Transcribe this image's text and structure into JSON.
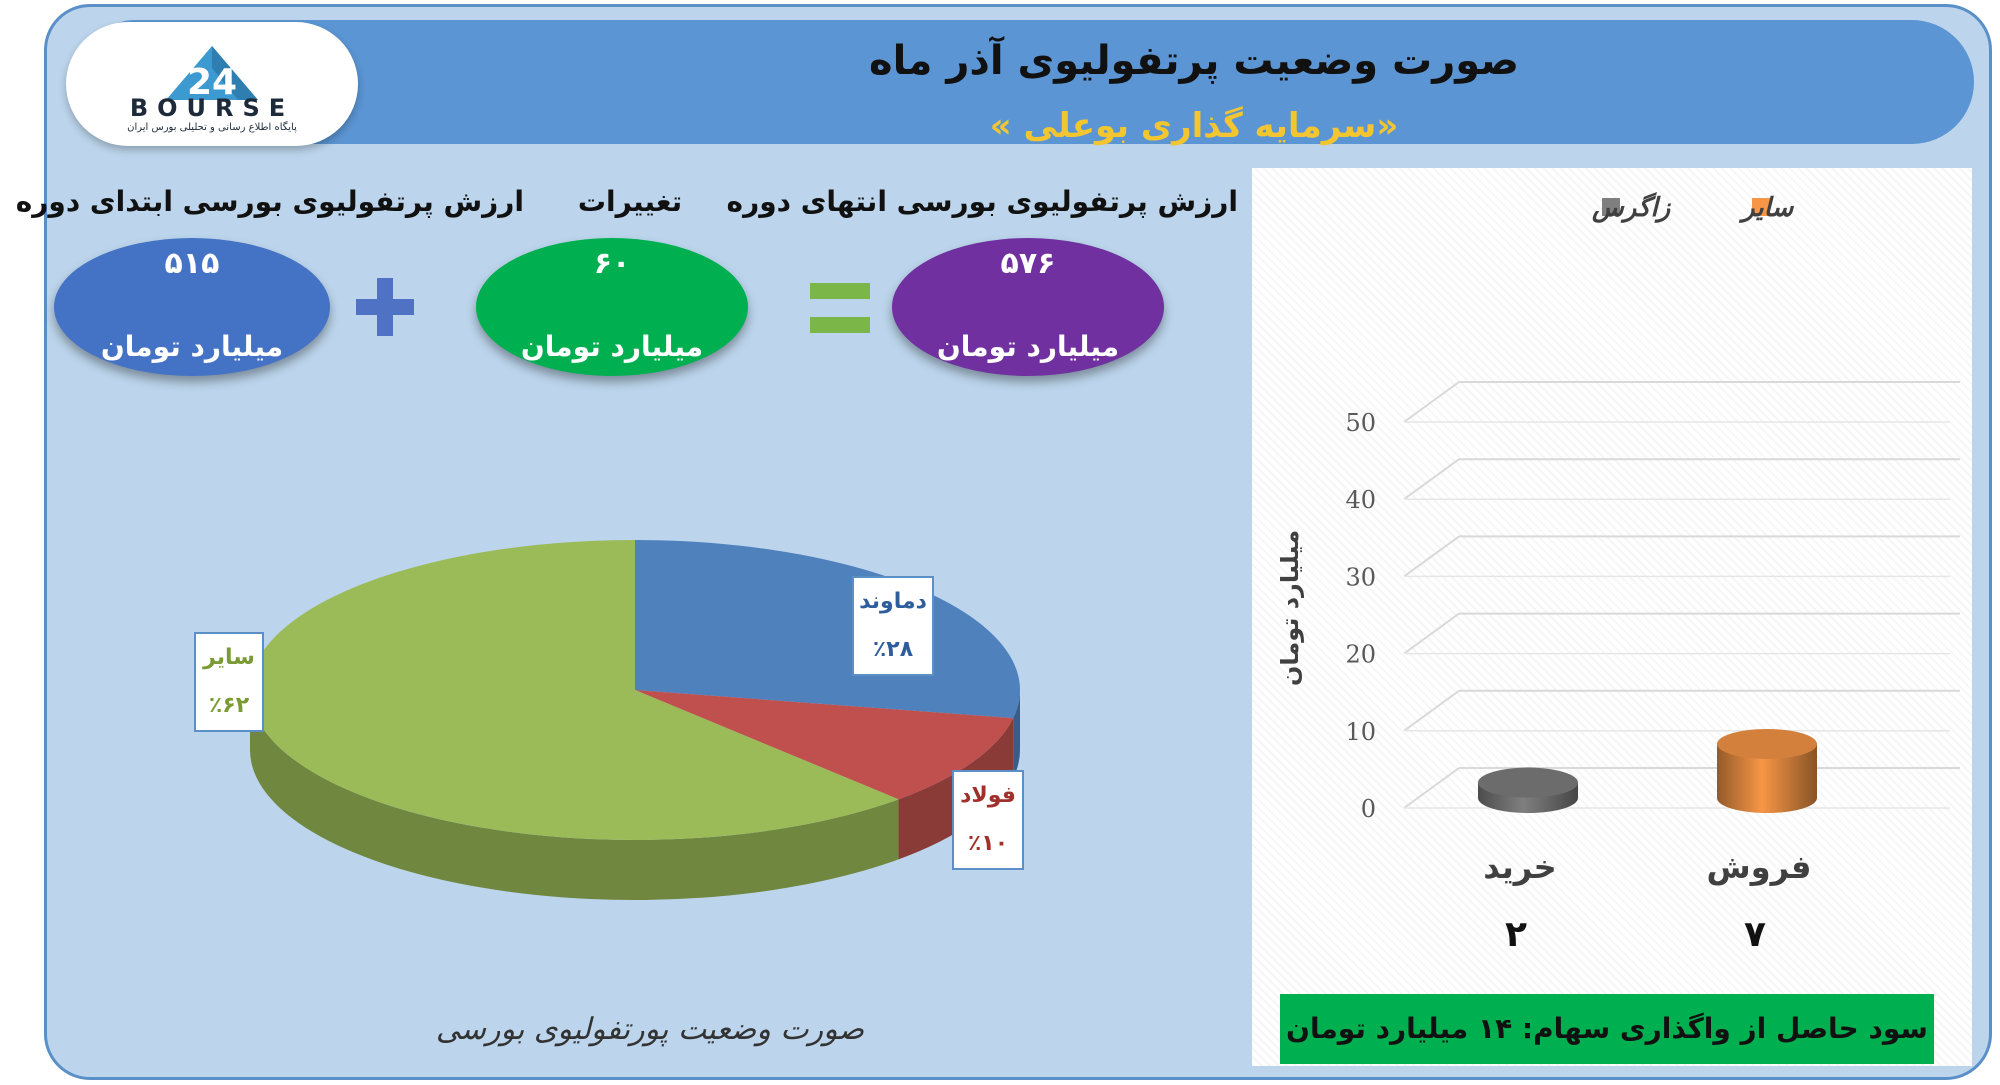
{
  "header": {
    "title": "صورت وضعیت پرتفولیوی آذر ماه",
    "subtitle": "«سرمایه گذاری بوعلی »"
  },
  "logo": {
    "text": "BOURSE",
    "tagline": "پایگاه اطلاع رسانی و تحلیلی بورس ایران"
  },
  "summary": {
    "end_label": "ارزش پرتفولیوی بورسی انتهای دوره",
    "end_value": "۵۷۶",
    "changes_label": "تغییرات",
    "changes_value": "۶۰",
    "start_label": "ارزش پرتفولیوی بورسی ابتدای دوره",
    "start_value": "۵۱۵",
    "unit": "میلیارد تومان",
    "colors": {
      "end": "#7030a0",
      "changes": "#00b050",
      "start": "#4472c4"
    }
  },
  "pie_caption": "صورت وضعیت پورتفولیوی بورسی",
  "profit": "سود حاصل از واگذاری سهام: ۱۴ میلیارد تومان",
  "chart_data": [
    {
      "type": "pie",
      "title": "",
      "slices": [
        {
          "label": "دماوند",
          "value": 28,
          "value_label": "٪۲۸",
          "color": "#4f81bd"
        },
        {
          "label": "فولاد",
          "value": 10,
          "value_label": "٪۱۰",
          "color": "#c0504d"
        },
        {
          "label": "سایر",
          "value": 62,
          "value_label": "٪۶۲",
          "color": "#9bbb59"
        }
      ]
    },
    {
      "type": "bar",
      "title": "",
      "categories": [
        "خرید",
        "فروش"
      ],
      "series": [
        {
          "name": "زاگرس",
          "color": "#7f7f7f",
          "values": [
            2,
            null
          ]
        },
        {
          "name": "سایر",
          "color": "#f79646",
          "values": [
            null,
            7
          ]
        }
      ],
      "value_labels": [
        "۲",
        "۷"
      ],
      "ylabel": "میلیارد تومان",
      "ylim": [
        0,
        50
      ],
      "yticks": [
        0,
        10,
        20,
        30,
        40,
        50
      ],
      "grid": true,
      "legend": "top"
    }
  ]
}
